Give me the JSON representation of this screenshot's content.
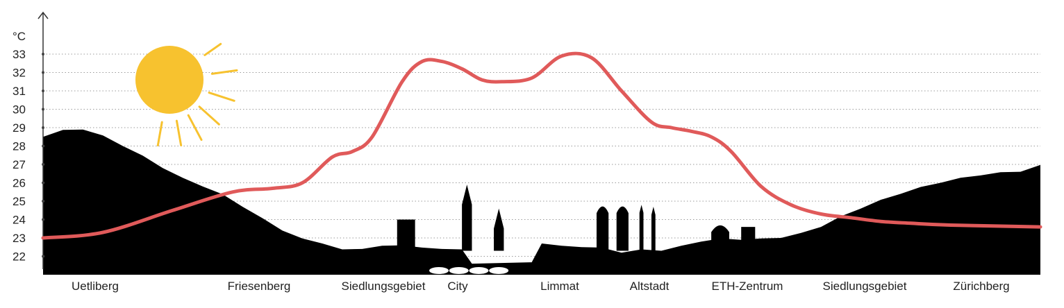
{
  "chart_data": {
    "type": "line",
    "title": "",
    "ylabel": "°C",
    "xlabel": "",
    "ylim": [
      22,
      33
    ],
    "yticks": [
      22,
      23,
      24,
      25,
      26,
      27,
      28,
      29,
      30,
      31,
      32,
      33
    ],
    "grid": "dotted-horizontal",
    "categories": [
      "Uetliberg",
      "Friesenberg",
      "Siedlungsgebiet",
      "City",
      "Limmat",
      "Altstadt",
      "ETH-Zentrum",
      "Siedlungsgebiet",
      "Zürichberg"
    ],
    "series": [
      {
        "color": "#e05a5a",
        "x": [
          0,
          0.06,
          0.13,
          0.19,
          0.23,
          0.26,
          0.29,
          0.31,
          0.33,
          0.36,
          0.38,
          0.4,
          0.42,
          0.44,
          0.46,
          0.49,
          0.52,
          0.55,
          0.58,
          0.61,
          0.63,
          0.65,
          0.67,
          0.69,
          0.72,
          0.75,
          0.78,
          0.81,
          0.84,
          0.87,
          0.91,
          1.0
        ],
        "values": [
          23.0,
          23.3,
          24.5,
          25.5,
          25.7,
          26.0,
          27.4,
          27.7,
          28.5,
          31.5,
          32.6,
          32.6,
          32.2,
          31.6,
          31.5,
          31.7,
          32.9,
          32.8,
          31.0,
          29.3,
          29.0,
          28.8,
          28.5,
          27.7,
          25.8,
          24.8,
          24.3,
          24.1,
          23.9,
          23.8,
          23.7,
          23.6
        ]
      }
    ],
    "background": {
      "sun_color": "#f7c22f",
      "terrain_color": "#000000",
      "terrain_profile": [
        [
          0,
          28.5
        ],
        [
          0.02,
          28.8
        ],
        [
          0.04,
          28.9
        ],
        [
          0.06,
          28.5
        ],
        [
          0.08,
          28.0
        ],
        [
          0.1,
          27.4
        ],
        [
          0.12,
          26.8
        ],
        [
          0.14,
          26.2
        ],
        [
          0.16,
          25.8
        ],
        [
          0.18,
          25.3
        ],
        [
          0.2,
          24.7
        ],
        [
          0.22,
          24.0
        ],
        [
          0.24,
          23.4
        ],
        [
          0.26,
          22.9
        ],
        [
          0.28,
          22.7
        ],
        [
          0.3,
          22.3
        ],
        [
          0.32,
          22.4
        ],
        [
          0.34,
          22.5
        ],
        [
          0.36,
          22.6
        ],
        [
          0.38,
          22.4
        ],
        [
          0.4,
          22.4
        ],
        [
          0.42,
          22.3
        ],
        [
          0.43,
          21.6
        ],
        [
          0.49,
          21.6
        ],
        [
          0.5,
          22.7
        ],
        [
          0.52,
          22.5
        ],
        [
          0.54,
          22.5
        ],
        [
          0.56,
          22.4
        ],
        [
          0.58,
          22.2
        ],
        [
          0.6,
          22.3
        ],
        [
          0.62,
          22.3
        ],
        [
          0.64,
          22.5
        ],
        [
          0.66,
          22.8
        ],
        [
          0.68,
          22.9
        ],
        [
          0.7,
          22.9
        ],
        [
          0.72,
          22.9
        ],
        [
          0.74,
          23.0
        ],
        [
          0.76,
          23.2
        ],
        [
          0.78,
          23.6
        ],
        [
          0.8,
          24.1
        ],
        [
          0.82,
          24.6
        ],
        [
          0.84,
          25.0
        ],
        [
          0.86,
          25.4
        ],
        [
          0.88,
          25.7
        ],
        [
          0.9,
          26.0
        ],
        [
          0.92,
          26.2
        ],
        [
          0.94,
          26.4
        ],
        [
          0.96,
          26.5
        ],
        [
          0.98,
          26.6
        ],
        [
          1.0,
          26.9
        ]
      ],
      "buildings": [
        {
          "x": 0.355,
          "w": 0.018,
          "h": 1.7
        },
        {
          "x": 0.42,
          "w": 0.01,
          "h": 3.6,
          "kind": "spire"
        },
        {
          "x": 0.452,
          "w": 0.01,
          "h": 2.3,
          "kind": "spire"
        },
        {
          "x": 0.555,
          "w": 0.012,
          "h": 2.7,
          "kind": "tower"
        },
        {
          "x": 0.575,
          "w": 0.012,
          "h": 2.7,
          "kind": "tower"
        },
        {
          "x": 0.598,
          "w": 0.004,
          "h": 2.5,
          "kind": "spire"
        },
        {
          "x": 0.61,
          "w": 0.004,
          "h": 2.4,
          "kind": "spire"
        },
        {
          "x": 0.67,
          "w": 0.018,
          "h": 1.6,
          "kind": "dome"
        },
        {
          "x": 0.7,
          "w": 0.014,
          "h": 1.3
        }
      ]
    }
  }
}
